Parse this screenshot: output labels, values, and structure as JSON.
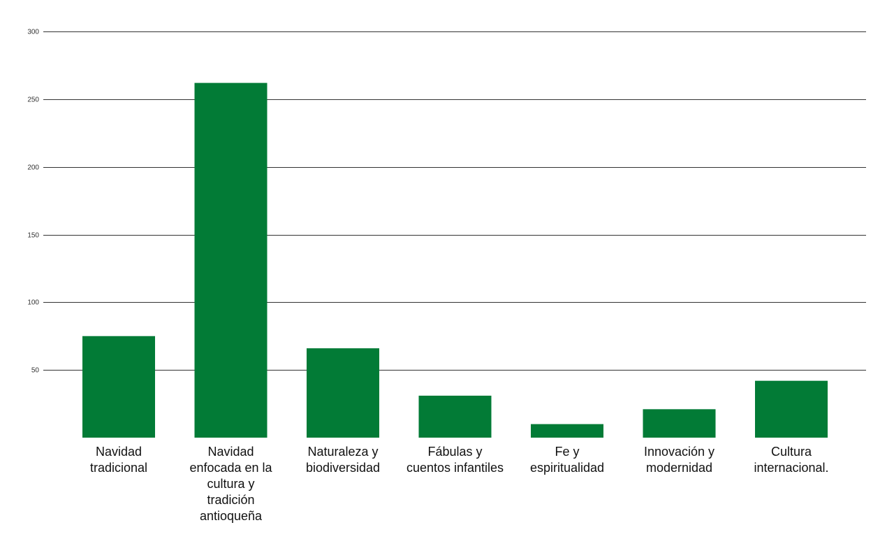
{
  "chart_data": {
    "type": "bar",
    "title": "",
    "xlabel": "",
    "ylabel": "",
    "ylim": [
      0,
      300
    ],
    "yticks": [
      50,
      100,
      150,
      200,
      250,
      300
    ],
    "grid": true,
    "legend": "none",
    "bar_color": "#027b36",
    "categories": [
      "Navidad tradicional",
      "Navidad enfocada en la cultura y tradición antioqueña",
      "Naturaleza y biodiversidad",
      "Fábulas y cuentos infantiles",
      "Fe y espiritualidad",
      "Innovación y modernidad",
      "Cultura internacional."
    ],
    "category_lines": [
      [
        "Navidad",
        "tradicional"
      ],
      [
        "Navidad",
        "enfocada en la",
        "cultura y",
        "tradición",
        "antioqueña"
      ],
      [
        "Naturaleza y",
        "biodiversidad"
      ],
      [
        "Fábulas y",
        "cuentos infantiles"
      ],
      [
        "Fe y",
        "espiritualidad"
      ],
      [
        "Innovación y",
        "modernidad"
      ],
      [
        "Cultura",
        "internacional."
      ]
    ],
    "values": [
      75,
      262,
      66,
      31,
      10,
      21,
      42
    ]
  }
}
